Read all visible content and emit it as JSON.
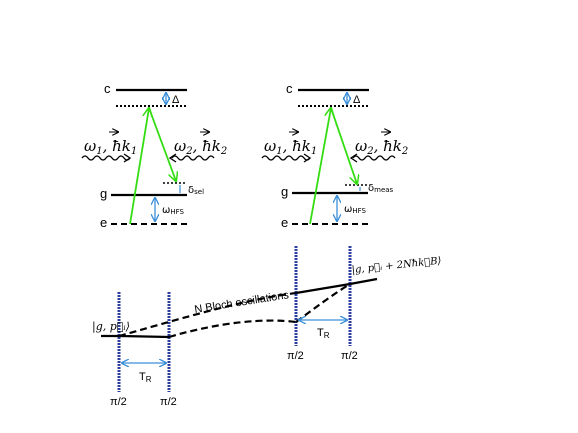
{
  "level_diagrams": [
    {
      "level_c": "c",
      "level_g": "g",
      "level_e": "e",
      "detuning": "Δ",
      "beam1_omega": "ω",
      "beam1_sub": "1",
      "beam1_k": ", ħk",
      "beam1_ksub": "1",
      "beam2_omega": "ω",
      "beam2_sub": "2",
      "beam2_k": ", ħk",
      "beam2_ksub": "2",
      "delta_sym": "δ",
      "delta_sub": "sel",
      "hfs_sym": "ω",
      "hfs_sub": "HFS"
    },
    {
      "level_c": "c",
      "level_g": "g",
      "level_e": "e",
      "detuning": "Δ",
      "beam1_omega": "ω",
      "beam1_sub": "1",
      "beam1_k": ", ħk",
      "beam1_ksub": "1",
      "beam2_omega": "ω",
      "beam2_sub": "2",
      "beam2_k": ", ħk",
      "beam2_ksub": "2",
      "delta_sym": "δ",
      "delta_sub": "meas",
      "hfs_sym": "ω",
      "hfs_sub": "HFS"
    }
  ],
  "sequence": {
    "initial_state": "|g, p⃗ᵢ⟩",
    "final_state": "|g, p⃗ᵢ + 2Nħk⃗B⟩",
    "bloch_label": "N Bloch oscillations",
    "pulse_labels": [
      "π/2",
      "π/2",
      "π/2",
      "π/2"
    ],
    "tr_sym": "T",
    "tr_sub": "R"
  },
  "colors": {
    "green_beam": "#33dd11",
    "blue_arrow": "#3a8fd9",
    "pulse_blue": "#2c3fa0",
    "black": "#000000"
  }
}
